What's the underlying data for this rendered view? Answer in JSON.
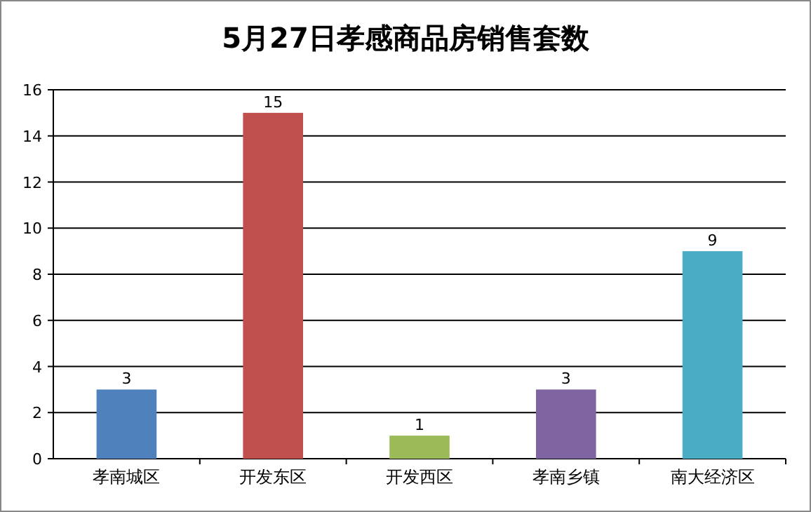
{
  "chart_data": {
    "type": "bar",
    "title": "5月27日孝感商品房销售套数",
    "categories": [
      "孝南城区",
      "开发东区",
      "开发西区",
      "孝南乡镇",
      "南大经济区"
    ],
    "values": [
      3,
      15,
      1,
      3,
      9
    ],
    "colors": [
      "#4f81bd",
      "#c0504d",
      "#9bbb59",
      "#8064a2",
      "#4bacc6"
    ],
    "ylim": [
      0,
      16
    ],
    "yticks": [
      0,
      2,
      4,
      6,
      8,
      10,
      12,
      14,
      16
    ],
    "grid": "y",
    "data_labels": true
  }
}
